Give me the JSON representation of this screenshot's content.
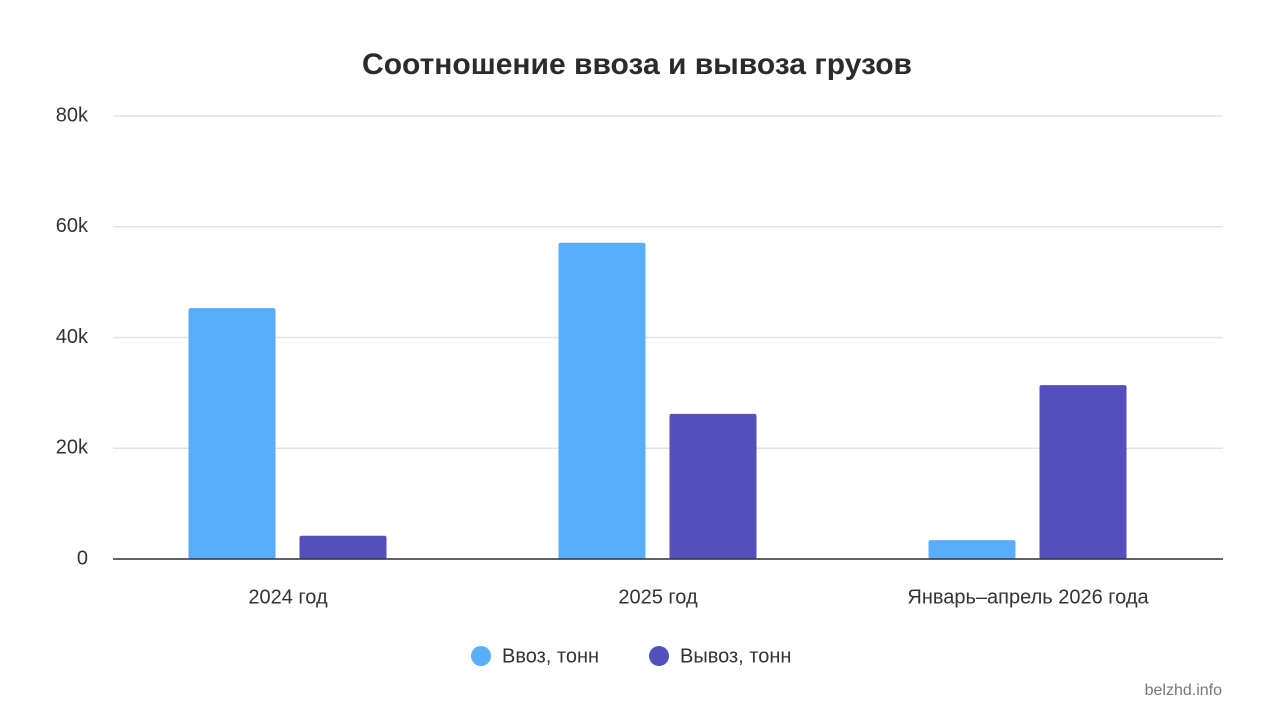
{
  "chart_data": {
    "type": "bar",
    "title": "Соотношение ввоза и вывоза грузов",
    "categories": [
      "2024 год",
      "2025 год",
      "Январь–апрель 2026 года"
    ],
    "series": [
      {
        "name": "Ввоз, тонн",
        "color": "#58aefa",
        "values": [
          45300,
          57100,
          3400
        ]
      },
      {
        "name": "Вывоз, тонн",
        "color": "#5350bd",
        "values": [
          4200,
          26200,
          31400
        ]
      }
    ],
    "ylim": [
      0,
      80000
    ],
    "yticks": [
      0,
      {
        "value": 20000,
        "label": "20k"
      },
      {
        "value": 40000,
        "label": "40k"
      },
      {
        "value": 60000,
        "label": "60k"
      },
      {
        "value": 80000,
        "label": "80k"
      }
    ],
    "grid": true,
    "legend": "bottom",
    "watermark": "belzhd.info"
  }
}
